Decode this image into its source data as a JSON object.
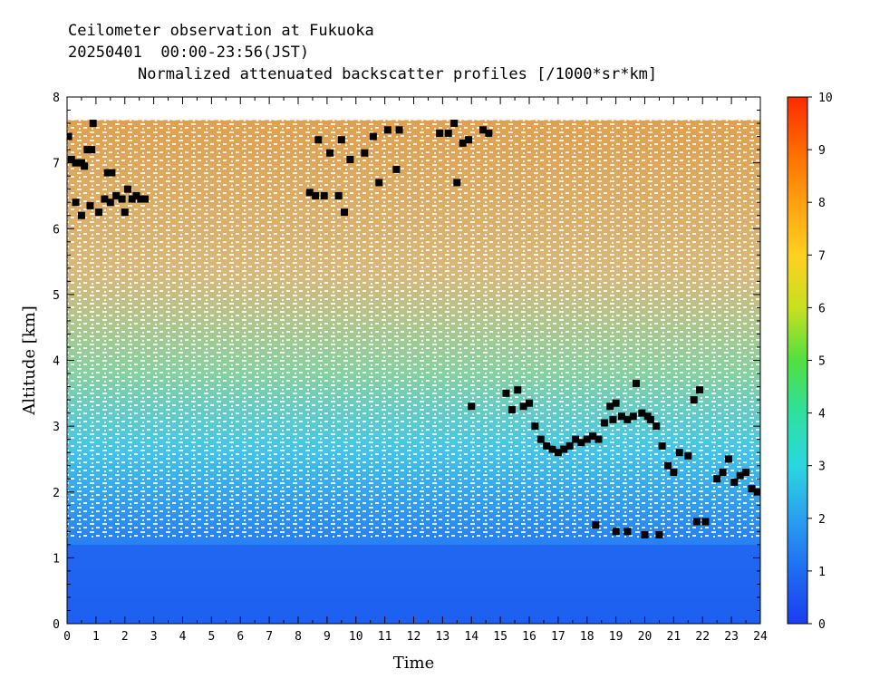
{
  "header": {
    "line1": "Ceilometer observation at Fukuoka",
    "line2": "20250401  00:00-23:56(JST)"
  },
  "chart_data": {
    "type": "heatmap",
    "title": "Normalized attenuated backscatter profiles [/1000*sr*km]",
    "xlabel": "Time",
    "ylabel": "Altitude [km]",
    "xlim": [
      0,
      24
    ],
    "ylim": [
      0,
      8
    ],
    "x_ticks": [
      "0",
      "1",
      "2",
      "3",
      "4",
      "5",
      "6",
      "7",
      "8",
      "9",
      "10",
      "11",
      "12",
      "13",
      "14",
      "15",
      "16",
      "17",
      "18",
      "19",
      "20",
      "21",
      "22",
      "23",
      "24"
    ],
    "y_ticks": [
      "0",
      "1",
      "2",
      "3",
      "4",
      "5",
      "6",
      "7",
      "8"
    ],
    "data_top_km": 7.65,
    "colorbar": {
      "range": [
        0,
        10
      ],
      "ticks": [
        "0",
        "1",
        "2",
        "3",
        "4",
        "5",
        "6",
        "7",
        "8",
        "9",
        "10"
      ],
      "colors": [
        "#1a3df0",
        "#1f6cf2",
        "#2aa0f0",
        "#2ad7e0",
        "#2ee0a0",
        "#52e040",
        "#c8e020",
        "#ffd020",
        "#ffa010",
        "#ff6a00",
        "#ff2a00"
      ]
    },
    "cloud_base_points": [
      [
        0.05,
        7.4
      ],
      [
        0.15,
        7.05
      ],
      [
        0.3,
        7.0
      ],
      [
        0.5,
        7.0
      ],
      [
        0.6,
        6.95
      ],
      [
        0.7,
        7.2
      ],
      [
        0.85,
        7.2
      ],
      [
        0.9,
        7.6
      ],
      [
        1.4,
        6.85
      ],
      [
        1.55,
        6.85
      ],
      [
        0.3,
        6.4
      ],
      [
        0.5,
        6.2
      ],
      [
        0.8,
        6.35
      ],
      [
        1.1,
        6.25
      ],
      [
        1.3,
        6.45
      ],
      [
        1.5,
        6.4
      ],
      [
        1.7,
        6.5
      ],
      [
        1.9,
        6.45
      ],
      [
        2.0,
        6.25
      ],
      [
        2.1,
        6.6
      ],
      [
        2.25,
        6.45
      ],
      [
        2.4,
        6.5
      ],
      [
        2.55,
        6.45
      ],
      [
        2.7,
        6.45
      ],
      [
        8.4,
        6.55
      ],
      [
        8.6,
        6.5
      ],
      [
        8.9,
        6.5
      ],
      [
        9.4,
        6.5
      ],
      [
        9.6,
        6.25
      ],
      [
        8.7,
        7.35
      ],
      [
        9.1,
        7.15
      ],
      [
        9.5,
        7.35
      ],
      [
        9.8,
        7.05
      ],
      [
        10.3,
        7.15
      ],
      [
        10.6,
        7.4
      ],
      [
        11.1,
        7.5
      ],
      [
        11.5,
        7.5
      ],
      [
        11.4,
        6.9
      ],
      [
        10.8,
        6.7
      ],
      [
        12.9,
        7.45
      ],
      [
        13.2,
        7.45
      ],
      [
        13.4,
        7.6
      ],
      [
        13.7,
        7.3
      ],
      [
        13.9,
        7.35
      ],
      [
        14.4,
        7.5
      ],
      [
        14.6,
        7.45
      ],
      [
        13.5,
        6.7
      ],
      [
        14.0,
        3.3
      ],
      [
        15.2,
        3.5
      ],
      [
        15.4,
        3.25
      ],
      [
        15.6,
        3.55
      ],
      [
        15.8,
        3.3
      ],
      [
        16.0,
        3.35
      ],
      [
        16.2,
        3.0
      ],
      [
        16.4,
        2.8
      ],
      [
        16.6,
        2.7
      ],
      [
        16.8,
        2.65
      ],
      [
        17.0,
        2.6
      ],
      [
        17.2,
        2.65
      ],
      [
        17.4,
        2.7
      ],
      [
        17.6,
        2.8
      ],
      [
        17.8,
        2.75
      ],
      [
        18.0,
        2.8
      ],
      [
        18.2,
        2.85
      ],
      [
        18.4,
        2.8
      ],
      [
        18.6,
        3.05
      ],
      [
        18.8,
        3.3
      ],
      [
        18.9,
        3.1
      ],
      [
        19.0,
        3.35
      ],
      [
        19.2,
        3.15
      ],
      [
        19.4,
        3.1
      ],
      [
        19.6,
        3.15
      ],
      [
        19.7,
        3.65
      ],
      [
        19.9,
        3.2
      ],
      [
        20.1,
        3.15
      ],
      [
        20.2,
        3.1
      ],
      [
        20.4,
        3.0
      ],
      [
        20.6,
        2.7
      ],
      [
        20.8,
        2.4
      ],
      [
        21.0,
        2.3
      ],
      [
        21.2,
        2.6
      ],
      [
        21.5,
        2.55
      ],
      [
        21.7,
        3.4
      ],
      [
        21.9,
        3.55
      ],
      [
        18.3,
        1.5
      ],
      [
        19.0,
        1.4
      ],
      [
        19.4,
        1.4
      ],
      [
        20.0,
        1.35
      ],
      [
        20.5,
        1.35
      ],
      [
        21.8,
        1.55
      ],
      [
        22.1,
        1.55
      ],
      [
        22.5,
        2.2
      ],
      [
        22.7,
        2.3
      ],
      [
        22.9,
        2.5
      ],
      [
        23.1,
        2.15
      ],
      [
        23.3,
        2.25
      ],
      [
        23.5,
        2.3
      ],
      [
        23.7,
        2.05
      ],
      [
        23.9,
        2.0
      ]
    ]
  }
}
